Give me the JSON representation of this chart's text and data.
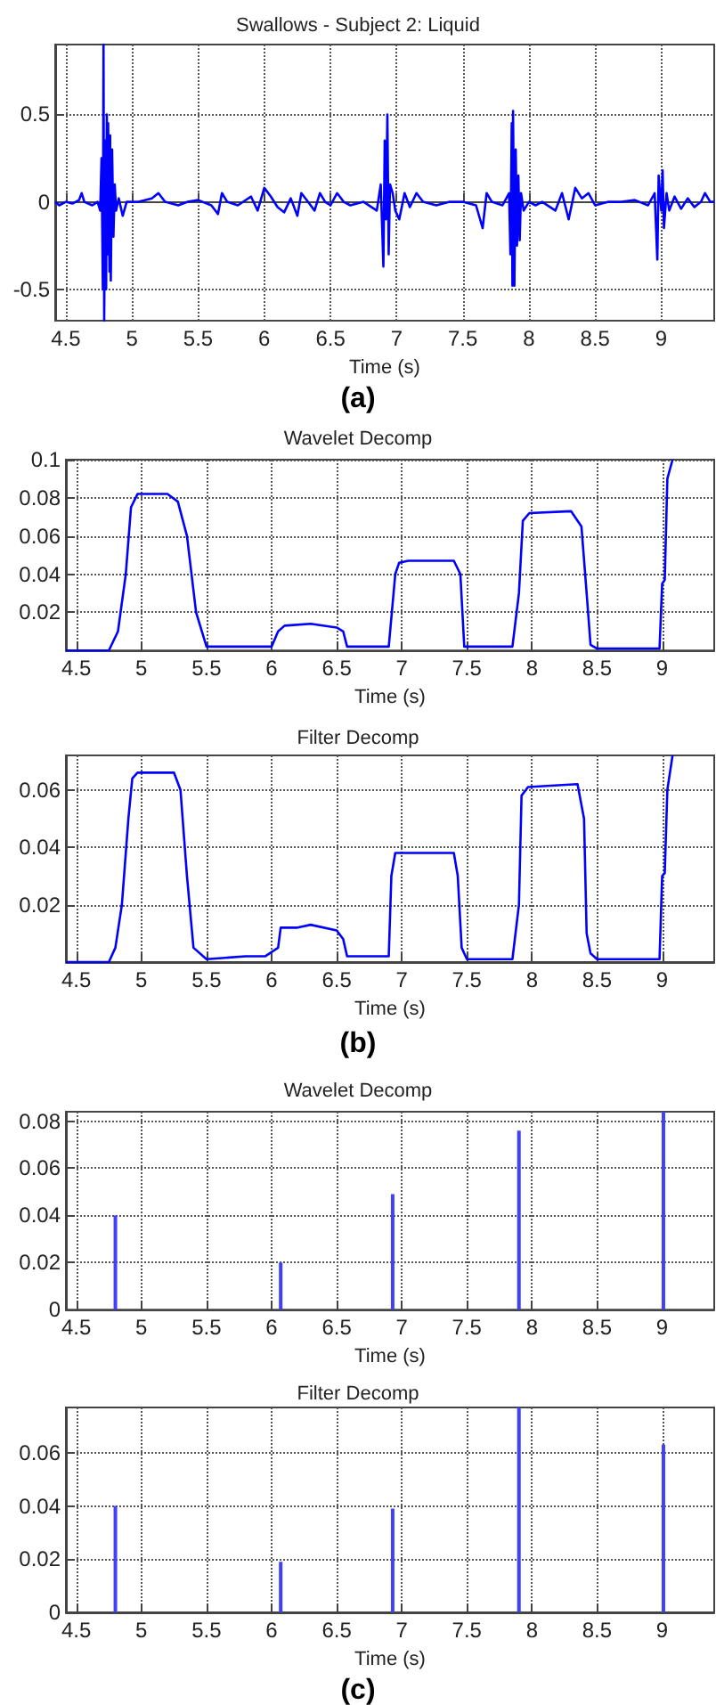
{
  "chart_data": [
    {
      "type": "line",
      "title": "Swallows - Subject 2: Liquid",
      "xlabel": "Time (s)",
      "annotations": [
        "(a)"
      ],
      "xlim": [
        4.42,
        9.4
      ],
      "xticks": [
        4.5,
        5,
        5.5,
        6,
        6.5,
        7,
        7.5,
        8,
        8.5,
        9
      ],
      "ylim": [
        -0.68,
        0.9
      ],
      "yticks": [
        -0.5,
        0,
        0.5
      ],
      "grid": true,
      "series": [
        {
          "color": "#0000ff",
          "x": [
            4.42,
            4.45,
            4.5,
            4.55,
            4.6,
            4.62,
            4.64,
            4.7,
            4.74,
            4.76,
            4.77,
            4.78,
            4.785,
            4.79,
            4.8,
            4.805,
            4.81,
            4.815,
            4.82,
            4.83,
            4.835,
            4.84,
            4.85,
            4.86,
            4.87,
            4.88,
            4.9,
            4.93,
            4.96,
            5.05,
            5.15,
            5.2,
            5.25,
            5.35,
            5.42,
            5.5,
            5.6,
            5.65,
            5.68,
            5.72,
            5.8,
            5.9,
            5.95,
            6.0,
            6.05,
            6.1,
            6.15,
            6.2,
            6.25,
            6.28,
            6.33,
            6.38,
            6.42,
            6.46,
            6.5,
            6.55,
            6.6,
            6.65,
            6.75,
            6.85,
            6.88,
            6.9,
            6.91,
            6.92,
            6.93,
            6.94,
            6.95,
            6.97,
            6.99,
            7.02,
            7.06,
            7.1,
            7.15,
            7.2,
            7.3,
            7.4,
            7.5,
            7.6,
            7.65,
            7.68,
            7.72,
            7.8,
            7.85,
            7.86,
            7.87,
            7.875,
            7.88,
            7.89,
            7.9,
            7.91,
            7.92,
            7.93,
            7.94,
            7.96,
            8.0,
            8.05,
            8.1,
            8.2,
            8.25,
            8.3,
            8.35,
            8.4,
            8.45,
            8.5,
            8.6,
            8.7,
            8.8,
            8.9,
            8.95,
            8.97,
            8.98,
            9.0,
            9.01,
            9.02,
            9.04,
            9.06,
            9.1,
            9.15,
            9.2,
            9.25,
            9.3,
            9.33,
            9.37,
            9.4
          ],
          "values": [
            0.0,
            -0.02,
            0.0,
            -0.01,
            0.01,
            0.05,
            0.0,
            -0.02,
            0.0,
            -0.05,
            0.25,
            -0.5,
            0.9,
            -0.68,
            0.35,
            -0.5,
            0.5,
            -0.3,
            0.45,
            -0.4,
            0.38,
            -0.45,
            0.3,
            -0.2,
            0.1,
            -0.05,
            0.02,
            -0.08,
            0.0,
            0.0,
            0.02,
            0.05,
            0.0,
            -0.02,
            0.0,
            0.01,
            -0.02,
            -0.07,
            0.05,
            0.0,
            -0.02,
            0.03,
            -0.05,
            0.08,
            0.03,
            -0.03,
            -0.06,
            0.02,
            -0.08,
            0.05,
            0.0,
            -0.05,
            0.05,
            0.0,
            -0.02,
            0.05,
            0.0,
            -0.02,
            0.0,
            -0.05,
            0.1,
            -0.37,
            0.35,
            -0.1,
            0.5,
            -0.3,
            0.1,
            0.05,
            -0.05,
            -0.1,
            0.05,
            -0.03,
            0.05,
            0.0,
            -0.02,
            0.0,
            0.0,
            -0.02,
            -0.15,
            0.05,
            0.0,
            -0.02,
            0.05,
            -0.3,
            0.45,
            -0.48,
            0.52,
            -0.48,
            0.3,
            -0.25,
            0.15,
            -0.22,
            0.05,
            -0.05,
            0.0,
            -0.02,
            0.0,
            -0.05,
            0.05,
            -0.1,
            0.08,
            0.02,
            0.05,
            -0.02,
            0.0,
            0.0,
            0.01,
            -0.02,
            0.05,
            -0.33,
            0.15,
            -0.05,
            0.18,
            -0.15,
            0.05,
            -0.05,
            0.03,
            -0.04,
            0.02,
            -0.03,
            0.0,
            0.05,
            0.0,
            0.0
          ]
        }
      ]
    },
    {
      "type": "line",
      "title": "Wavelet Decomp",
      "xlabel": "Time (s)",
      "xlim": [
        4.42,
        9.4
      ],
      "xticks": [
        4.5,
        5,
        5.5,
        6,
        6.5,
        7,
        7.5,
        8,
        8.5,
        9
      ],
      "ylim": [
        0,
        0.1
      ],
      "yticks": [
        0.02,
        0.04,
        0.06,
        0.08,
        0.1
      ],
      "grid": true,
      "series": [
        {
          "color": "#0000ff",
          "x": [
            4.42,
            4.75,
            4.82,
            4.88,
            4.92,
            4.97,
            5.2,
            5.28,
            5.35,
            5.42,
            5.5,
            5.7,
            6.0,
            6.05,
            6.1,
            6.3,
            6.5,
            6.55,
            6.58,
            6.9,
            6.95,
            6.98,
            7.05,
            7.4,
            7.45,
            7.48,
            7.85,
            7.9,
            7.93,
            7.98,
            8.3,
            8.38,
            8.42,
            8.45,
            8.5,
            8.98,
            9.0,
            9.02,
            9.04,
            9.08
          ],
          "values": [
            0.0,
            0.0,
            0.01,
            0.04,
            0.075,
            0.082,
            0.082,
            0.078,
            0.06,
            0.02,
            0.002,
            0.002,
            0.002,
            0.01,
            0.013,
            0.014,
            0.012,
            0.01,
            0.002,
            0.002,
            0.04,
            0.046,
            0.047,
            0.047,
            0.04,
            0.002,
            0.002,
            0.03,
            0.068,
            0.072,
            0.073,
            0.065,
            0.03,
            0.003,
            0.001,
            0.001,
            0.035,
            0.037,
            0.09,
            0.1
          ]
        }
      ]
    },
    {
      "type": "line",
      "title": "Filter Decomp",
      "xlabel": "Time (s)",
      "annotations": [
        "(b)"
      ],
      "xlim": [
        4.42,
        9.4
      ],
      "xticks": [
        4.5,
        5,
        5.5,
        6,
        6.5,
        7,
        7.5,
        8,
        8.5,
        9
      ],
      "ylim": [
        0,
        0.072
      ],
      "yticks": [
        0.02,
        0.04,
        0.06
      ],
      "grid": true,
      "series": [
        {
          "color": "#0000ff",
          "x": [
            4.42,
            4.75,
            4.8,
            4.85,
            4.9,
            4.93,
            4.97,
            5.25,
            5.3,
            5.35,
            5.4,
            5.5,
            5.8,
            5.95,
            6.05,
            6.07,
            6.2,
            6.3,
            6.5,
            6.55,
            6.58,
            6.9,
            6.92,
            6.95,
            7.4,
            7.43,
            7.46,
            7.5,
            7.85,
            7.9,
            7.92,
            7.97,
            8.35,
            8.4,
            8.42,
            8.45,
            8.5,
            8.98,
            9.0,
            9.02,
            9.04,
            9.08
          ],
          "values": [
            0.0,
            0.0,
            0.005,
            0.02,
            0.05,
            0.064,
            0.066,
            0.066,
            0.06,
            0.03,
            0.005,
            0.001,
            0.002,
            0.002,
            0.005,
            0.012,
            0.012,
            0.013,
            0.011,
            0.008,
            0.002,
            0.002,
            0.03,
            0.038,
            0.038,
            0.03,
            0.005,
            0.001,
            0.001,
            0.02,
            0.058,
            0.061,
            0.062,
            0.05,
            0.01,
            0.003,
            0.001,
            0.001,
            0.03,
            0.031,
            0.06,
            0.072
          ]
        }
      ]
    },
    {
      "type": "bar",
      "title": "Wavelet Decomp",
      "xlabel": "Time (s)",
      "xlim": [
        4.42,
        9.4
      ],
      "xticks": [
        4.5,
        5,
        5.5,
        6,
        6.5,
        7,
        7.5,
        8,
        8.5,
        9
      ],
      "ylim": [
        0,
        0.084
      ],
      "yticks": [
        0,
        0.02,
        0.04,
        0.06,
        0.08
      ],
      "grid": true,
      "series": [
        {
          "color": "#4040ff",
          "x": [
            4.8,
            6.07,
            6.93,
            7.9,
            9.01
          ],
          "values": [
            0.04,
            0.02,
            0.049,
            0.076,
            0.084
          ]
        }
      ]
    },
    {
      "type": "bar",
      "title": "Filter Decomp",
      "xlabel": "Time (s)",
      "annotations": [
        "(c)"
      ],
      "xlim": [
        4.42,
        9.4
      ],
      "xticks": [
        4.5,
        5,
        5.5,
        6,
        6.5,
        7,
        7.5,
        8,
        8.5,
        9
      ],
      "ylim": [
        0,
        0.077
      ],
      "yticks": [
        0,
        0.02,
        0.04,
        0.06
      ],
      "grid": true,
      "series": [
        {
          "color": "#4040ff",
          "x": [
            4.8,
            6.07,
            6.93,
            7.9,
            9.01
          ],
          "values": [
            0.04,
            0.019,
            0.039,
            0.077,
            0.063
          ]
        }
      ]
    }
  ]
}
